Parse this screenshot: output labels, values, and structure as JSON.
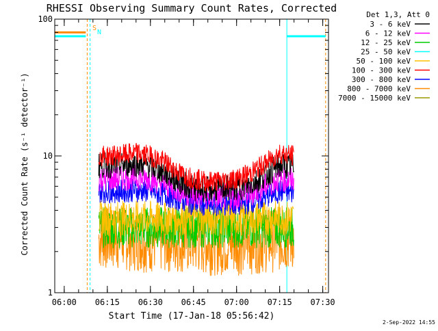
{
  "chart_data": {
    "type": "line",
    "title": "RHESSI Observing Summary Count Rates, Corrected",
    "xlabel": "Start Time (17-Jan-18 05:56:42)",
    "ylabel": "Corrected Count Rate (s⁻¹ detector⁻¹)",
    "y_scale": "log",
    "ylim": [
      1,
      100
    ],
    "xlim": [
      "05:56:42",
      "07:32:00"
    ],
    "x_ticks": [
      "06:00",
      "06:15",
      "06:30",
      "06:45",
      "07:00",
      "07:15",
      "07:30"
    ],
    "y_ticks": [
      "1",
      "10",
      "100"
    ],
    "grid": false,
    "legend_position": "right",
    "legend_title": "Det 1,3, Att 0",
    "series": [
      {
        "name": "3 - 6 keV",
        "color": "#000000",
        "x": [
          "06:12",
          "06:18",
          "06:25",
          "06:30",
          "06:35",
          "06:40",
          "06:45",
          "06:50",
          "06:55",
          "07:00",
          "07:05",
          "07:10",
          "07:15",
          "07:20"
        ],
        "y": [
          8.5,
          8.5,
          8.8,
          8.4,
          7.5,
          6.5,
          5.8,
          5.7,
          5.8,
          5.8,
          6.2,
          7.2,
          8.5,
          8.3
        ]
      },
      {
        "name": "6 - 12 keV",
        "color": "#ff00ff",
        "x": [
          "06:12",
          "06:18",
          "06:25",
          "06:30",
          "06:35",
          "06:40",
          "06:45",
          "06:50",
          "06:55",
          "07:00",
          "07:05",
          "07:10",
          "07:15",
          "07:20"
        ],
        "y": [
          6.8,
          6.8,
          7.0,
          6.8,
          6.2,
          5.6,
          5.1,
          5.0,
          5.0,
          5.0,
          5.3,
          6.0,
          6.8,
          6.6
        ]
      },
      {
        "name": "12 - 25 keV",
        "color": "#00cc00",
        "x": [
          "06:12",
          "06:20",
          "06:30",
          "06:40",
          "06:50",
          "07:00",
          "07:10",
          "07:20"
        ],
        "y": [
          3.0,
          3.0,
          3.0,
          3.0,
          3.0,
          3.0,
          3.0,
          3.0
        ]
      },
      {
        "name": "25 - 50 keV",
        "color": "#00ffff",
        "x": [
          "05:56:42",
          "06:07:30"
        ],
        "y": [
          75,
          75
        ]
      },
      {
        "name": "50 - 100 keV",
        "color": "#ffbf00",
        "x": [
          "06:12",
          "06:20",
          "06:30",
          "06:40",
          "06:50",
          "07:00",
          "07:10",
          "07:20"
        ],
        "y": [
          3.5,
          3.5,
          3.5,
          3.5,
          3.5,
          3.5,
          3.5,
          3.5
        ]
      },
      {
        "name": "100 - 300 keV",
        "color": "#ff0000",
        "x": [
          "06:12",
          "06:18",
          "06:25",
          "06:30",
          "06:35",
          "06:40",
          "06:45",
          "06:50",
          "06:55",
          "07:00",
          "07:05",
          "07:10",
          "07:15",
          "07:20"
        ],
        "y": [
          10.0,
          10.0,
          10.5,
          10.0,
          9.0,
          7.5,
          6.8,
          6.5,
          6.6,
          6.8,
          7.5,
          8.8,
          10.5,
          10.0
        ]
      },
      {
        "name": "300 - 800 keV",
        "color": "#0000ff",
        "x": [
          "06:12",
          "06:18",
          "06:25",
          "06:30",
          "06:35",
          "06:40",
          "06:45",
          "06:50",
          "06:55",
          "07:00",
          "07:05",
          "07:10",
          "07:15",
          "07:20"
        ],
        "y": [
          5.5,
          5.5,
          5.6,
          5.5,
          5.2,
          4.8,
          4.5,
          4.4,
          4.4,
          4.4,
          4.6,
          5.0,
          5.5,
          5.4
        ]
      },
      {
        "name": "800 - 7000 keV",
        "color": "#ff8c00",
        "x": [
          "05:56:42",
          "06:07:30",
          "06:12",
          "06:20",
          "06:30",
          "06:40",
          "06:50",
          "07:00",
          "07:10",
          "07:20"
        ],
        "y": [
          80,
          80,
          2.5,
          2.5,
          2.4,
          2.4,
          2.3,
          2.3,
          2.4,
          2.5
        ]
      },
      {
        "name": "7000 - 15000 keV",
        "color": "#999900",
        "x": [],
        "y": []
      }
    ],
    "annotations": [
      {
        "text": "S",
        "color": "#ff8c00"
      },
      {
        "text": "N",
        "color": "#00ffff"
      }
    ],
    "vertical_markers": [
      {
        "x": "06:08:00",
        "color": "#ff8c00",
        "style": "dashed"
      },
      {
        "x": "06:09:00",
        "color": "#00ffff",
        "style": "dashed"
      },
      {
        "x": "07:17:30",
        "color": "#00ffff",
        "style": "solid"
      },
      {
        "x": "07:31:00",
        "color": "#ff8c00",
        "style": "dashed"
      }
    ],
    "data_gaps": [
      [
        "05:56:42",
        "06:10:00"
      ],
      [
        "07:20:00",
        "07:32:00"
      ]
    ],
    "footer": "2-Sep-2022 14:55"
  }
}
